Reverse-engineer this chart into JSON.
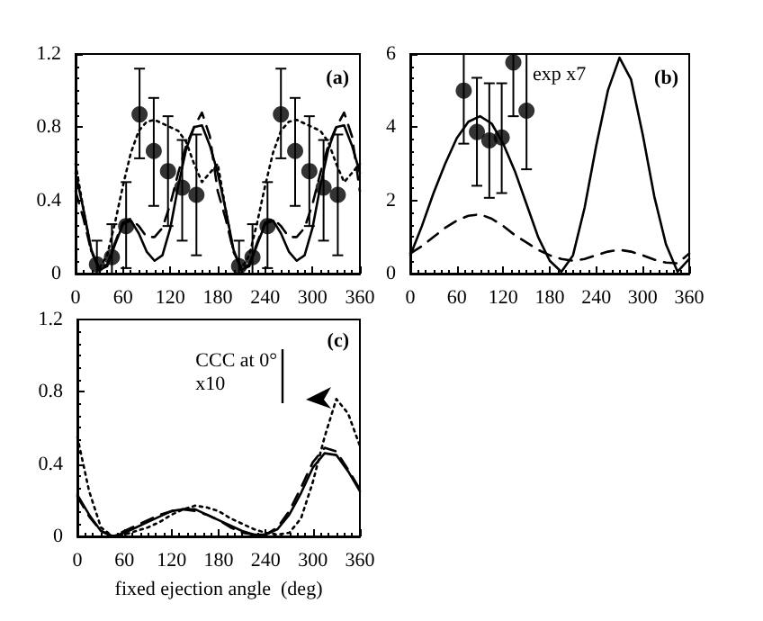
{
  "chart_data": [
    {
      "type": "line",
      "xlim": [
        0,
        360
      ],
      "xticks": [
        0,
        60,
        120,
        180,
        240,
        300,
        360
      ],
      "ylim": [
        0,
        1.2
      ],
      "yticks": [
        0,
        0.4,
        0.8,
        1.2
      ],
      "annotations": [
        "(a)"
      ],
      "series": [
        {
          "type": "scatter",
          "color": "#000000",
          "marker": "circle",
          "x": [
            27,
            46,
            64,
            81,
            99,
            117,
            135,
            153,
            207,
            224,
            243,
            260,
            278,
            296,
            314,
            332
          ],
          "values": [
            0.05,
            0.09,
            0.26,
            0.87,
            0.67,
            0.56,
            0.47,
            0.43,
            0.04,
            0.09,
            0.26,
            0.87,
            0.67,
            0.56,
            0.47,
            0.43
          ],
          "errors": [
            [
              0,
              0.18
            ],
            [
              0,
              0.27
            ],
            [
              0.03,
              0.5
            ],
            [
              0.63,
              1.12
            ],
            [
              0.37,
              0.96
            ],
            [
              0.26,
              0.86
            ],
            [
              0.18,
              0.73
            ],
            [
              0.1,
              0.76
            ],
            [
              0,
              0.18
            ],
            [
              0,
              0.27
            ],
            [
              0.03,
              0.5
            ],
            [
              0.63,
              1.12
            ],
            [
              0.37,
              0.96
            ],
            [
              0.26,
              0.86
            ],
            [
              0.18,
              0.73
            ],
            [
              0.1,
              0.76
            ]
          ]
        },
        {
          "type": "line",
          "color": "#000000",
          "marker": "none",
          "line_style": "solid",
          "x": [
            0,
            10,
            20,
            30,
            40,
            50,
            60,
            70,
            80,
            90,
            100,
            110,
            120,
            130,
            140,
            150,
            160,
            170,
            180,
            190,
            200,
            210,
            220,
            230,
            240,
            250,
            260,
            270,
            280,
            290,
            300,
            310,
            320,
            330,
            340,
            350,
            360
          ],
          "values": [
            0.55,
            0.35,
            0.13,
            0.02,
            0.04,
            0.16,
            0.27,
            0.29,
            0.22,
            0.12,
            0.07,
            0.1,
            0.25,
            0.48,
            0.68,
            0.8,
            0.81,
            0.7,
            0.55,
            0.35,
            0.13,
            0.02,
            0.04,
            0.16,
            0.27,
            0.29,
            0.22,
            0.12,
            0.07,
            0.1,
            0.25,
            0.48,
            0.68,
            0.8,
            0.81,
            0.7,
            0.55
          ]
        },
        {
          "type": "line",
          "color": "#000000",
          "marker": "none",
          "line_style": "dashed",
          "x": [
            0,
            10,
            20,
            30,
            40,
            50,
            60,
            70,
            80,
            90,
            100,
            110,
            120,
            130,
            140,
            150,
            160,
            170,
            180,
            190,
            200,
            210,
            220,
            230,
            240,
            250,
            260,
            270,
            280,
            290,
            300,
            310,
            320,
            330,
            340,
            350,
            360
          ],
          "values": [
            0.45,
            0.3,
            0.12,
            0.03,
            0.05,
            0.17,
            0.28,
            0.3,
            0.26,
            0.2,
            0.2,
            0.25,
            0.38,
            0.55,
            0.7,
            0.8,
            0.88,
            0.75,
            0.45,
            0.3,
            0.12,
            0.03,
            0.05,
            0.17,
            0.28,
            0.3,
            0.26,
            0.2,
            0.2,
            0.25,
            0.38,
            0.55,
            0.7,
            0.8,
            0.88,
            0.75,
            0.45
          ]
        },
        {
          "type": "line",
          "color": "#000000",
          "marker": "none",
          "line_style": "dotted",
          "x": [
            0,
            10,
            20,
            30,
            40,
            50,
            60,
            70,
            80,
            90,
            100,
            110,
            120,
            130,
            140,
            150,
            160,
            170,
            180,
            190,
            200,
            210,
            220,
            230,
            240,
            250,
            260,
            270,
            280,
            290,
            300,
            310,
            320,
            330,
            340,
            350,
            360
          ],
          "values": [
            0.6,
            0.35,
            0.12,
            0.03,
            0.1,
            0.28,
            0.48,
            0.66,
            0.78,
            0.83,
            0.84,
            0.82,
            0.8,
            0.78,
            0.72,
            0.6,
            0.5,
            0.55,
            0.6,
            0.35,
            0.12,
            0.03,
            0.1,
            0.28,
            0.48,
            0.66,
            0.78,
            0.83,
            0.84,
            0.82,
            0.8,
            0.78,
            0.72,
            0.6,
            0.5,
            0.55,
            0.6
          ]
        }
      ]
    },
    {
      "type": "line",
      "xlim": [
        0,
        360
      ],
      "xticks": [
        0,
        60,
        120,
        180,
        240,
        300,
        360
      ],
      "ylim": [
        0,
        6
      ],
      "yticks": [
        0,
        2,
        4,
        6
      ],
      "annotations": [
        "exp x7",
        "(b)"
      ],
      "series": [
        {
          "type": "scatter",
          "color": "#000000",
          "marker": "circle",
          "x": [
            69,
            86,
            102,
            118,
            133,
            150
          ],
          "values": [
            5.0,
            3.87,
            3.64,
            3.72,
            5.77,
            4.45
          ],
          "errors": [
            [
              3.55,
              6
            ],
            [
              2.4,
              5.35
            ],
            [
              2.07,
              5.2
            ],
            [
              2.2,
              5.2
            ],
            [
              4.3,
              6
            ],
            [
              2.85,
              6
            ]
          ]
        },
        {
          "type": "line",
          "color": "#000000",
          "marker": "none",
          "line_style": "solid",
          "x": [
            0,
            15,
            30,
            45,
            60,
            75,
            90,
            105,
            120,
            135,
            150,
            165,
            180,
            195,
            210,
            225,
            240,
            255,
            270,
            285,
            300,
            315,
            330,
            345,
            360
          ],
          "values": [
            0.5,
            1.3,
            2.2,
            3.0,
            3.7,
            4.15,
            4.3,
            4.1,
            3.55,
            2.8,
            1.9,
            1.0,
            0.35,
            0.05,
            0.5,
            1.8,
            3.5,
            5.0,
            5.9,
            5.3,
            3.8,
            2.1,
            0.8,
            0.05,
            0.4
          ]
        },
        {
          "type": "line",
          "color": "#000000",
          "marker": "none",
          "line_style": "dashed",
          "x": [
            0,
            15,
            30,
            45,
            60,
            75,
            90,
            105,
            120,
            135,
            150,
            165,
            180,
            195,
            210,
            225,
            240,
            255,
            270,
            285,
            300,
            315,
            330,
            345,
            360
          ],
          "values": [
            0.55,
            0.75,
            1.0,
            1.25,
            1.45,
            1.58,
            1.62,
            1.5,
            1.3,
            1.05,
            0.85,
            0.65,
            0.5,
            0.4,
            0.35,
            0.4,
            0.5,
            0.6,
            0.65,
            0.6,
            0.5,
            0.38,
            0.3,
            0.28,
            0.55
          ]
        }
      ]
    },
    {
      "type": "line",
      "xlim": [
        0,
        360
      ],
      "xticks": [
        0,
        60,
        120,
        180,
        240,
        300,
        360
      ],
      "ylim": [
        0,
        1.2
      ],
      "yticks": [
        0,
        0.4,
        0.8,
        1.2
      ],
      "xlabel": "fixed ejection angle  (deg)",
      "annotations": [
        "(c)",
        "CCC at 0°\nx10"
      ],
      "series": [
        {
          "type": "line",
          "color": "#000000",
          "marker": "none",
          "line_style": "solid",
          "x": [
            0,
            15,
            30,
            45,
            60,
            75,
            90,
            105,
            120,
            135,
            150,
            165,
            180,
            195,
            210,
            225,
            240,
            255,
            270,
            285,
            300,
            315,
            330,
            345,
            360
          ],
          "values": [
            0.23,
            0.12,
            0.03,
            0,
            0.02,
            0.05,
            0.08,
            0.11,
            0.14,
            0.15,
            0.15,
            0.12,
            0.09,
            0.06,
            0.03,
            0.01,
            0.01,
            0.04,
            0.12,
            0.24,
            0.38,
            0.46,
            0.45,
            0.36,
            0.25
          ]
        },
        {
          "type": "line",
          "color": "#000000",
          "marker": "none",
          "line_style": "dashed",
          "x": [
            0,
            15,
            30,
            45,
            60,
            75,
            90,
            105,
            120,
            135,
            150,
            165,
            180,
            195,
            210,
            225,
            240,
            255,
            270,
            285,
            300,
            315,
            330,
            345,
            360
          ],
          "values": [
            0.22,
            0.11,
            0.03,
            0,
            0.03,
            0.06,
            0.09,
            0.12,
            0.14,
            0.15,
            0.14,
            0.12,
            0.09,
            0.05,
            0.02,
            0.01,
            0.01,
            0.05,
            0.14,
            0.27,
            0.41,
            0.49,
            0.47,
            0.37,
            0.26
          ]
        },
        {
          "type": "line",
          "color": "#000000",
          "marker": "none",
          "line_style": "dotted",
          "x": [
            0,
            15,
            30,
            45,
            60,
            75,
            90,
            105,
            120,
            135,
            150,
            165,
            180,
            195,
            210,
            225,
            240,
            255,
            270,
            285,
            300,
            315,
            330,
            345,
            360
          ],
          "values": [
            0.55,
            0.25,
            0.05,
            0,
            0.01,
            0.03,
            0.05,
            0.08,
            0.12,
            0.15,
            0.17,
            0.16,
            0.14,
            0.1,
            0.07,
            0.04,
            0.02,
            0.01,
            0.02,
            0.1,
            0.3,
            0.55,
            0.76,
            0.68,
            0.5
          ]
        }
      ]
    }
  ]
}
